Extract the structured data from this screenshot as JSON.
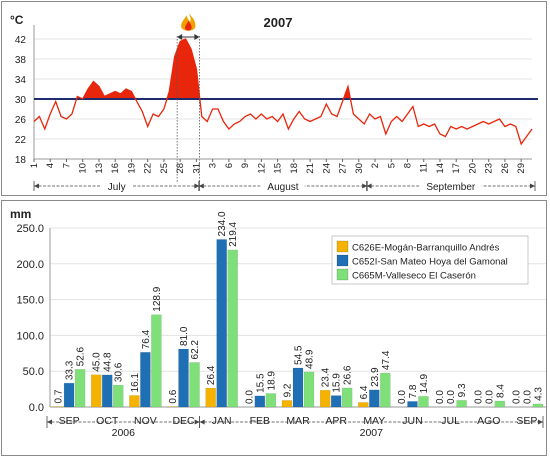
{
  "colors": {
    "temp_line": "#e8260c",
    "temp_fill": "#e8260c",
    "threshold": "#1f2d6e",
    "s1": "#f5b300",
    "s2": "#1f6fb5",
    "s3": "#7fe07a",
    "panel_border": "#888888",
    "grid": "#e3e3e3"
  },
  "chart_data": [
    {
      "type": "line",
      "title": "2007",
      "ylabel": "°C",
      "ylim": [
        18,
        44
      ],
      "yticks": [
        18,
        22,
        26,
        30,
        34,
        38,
        42
      ],
      "threshold": 30,
      "fire_icon": "fire-icon",
      "day_index_range": [
        1,
        93
      ],
      "x_tick_labels": [
        {
          "i": 1,
          "label": "1"
        },
        {
          "i": 4,
          "label": "4"
        },
        {
          "i": 7,
          "label": "7"
        },
        {
          "i": 10,
          "label": "10"
        },
        {
          "i": 13,
          "label": "13"
        },
        {
          "i": 16,
          "label": "16"
        },
        {
          "i": 19,
          "label": "19"
        },
        {
          "i": 22,
          "label": "22"
        },
        {
          "i": 25,
          "label": "25"
        },
        {
          "i": 28,
          "label": "28"
        },
        {
          "i": 31,
          "label": "31"
        },
        {
          "i": 34,
          "label": "3"
        },
        {
          "i": 37,
          "label": "6"
        },
        {
          "i": 40,
          "label": "9"
        },
        {
          "i": 43,
          "label": "12"
        },
        {
          "i": 46,
          "label": "15"
        },
        {
          "i": 49,
          "label": "18"
        },
        {
          "i": 52,
          "label": "21"
        },
        {
          "i": 55,
          "label": "24"
        },
        {
          "i": 58,
          "label": "27"
        },
        {
          "i": 61,
          "label": "30"
        },
        {
          "i": 64,
          "label": "2"
        },
        {
          "i": 67,
          "label": "5"
        },
        {
          "i": 70,
          "label": "8"
        },
        {
          "i": 73,
          "label": "11"
        },
        {
          "i": 76,
          "label": "14"
        },
        {
          "i": 79,
          "label": "17"
        },
        {
          "i": 82,
          "label": "20"
        },
        {
          "i": 85,
          "label": "23"
        },
        {
          "i": 88,
          "label": "26"
        },
        {
          "i": 91,
          "label": "29"
        }
      ],
      "months": [
        {
          "label": "July",
          "from": 1,
          "to": 31
        },
        {
          "label": "August",
          "from": 32,
          "to": 62
        },
        {
          "label": "September",
          "from": 63,
          "to": 93
        }
      ],
      "heat_event": {
        "from": 28,
        "to": 31
      },
      "values": [
        25.5,
        26.5,
        24.0,
        27.0,
        29.5,
        26.5,
        26.0,
        27.0,
        30.5,
        30.0,
        32.0,
        33.5,
        32.5,
        30.5,
        31.0,
        31.5,
        31.0,
        32.0,
        31.5,
        29.5,
        27.5,
        24.5,
        27.0,
        26.5,
        28.0,
        31.5,
        38.5,
        41.5,
        42.0,
        40.0,
        36.0,
        26.5,
        25.5,
        28.0,
        28.0,
        25.5,
        24.0,
        25.0,
        25.5,
        26.5,
        27.0,
        26.0,
        27.0,
        26.0,
        26.5,
        25.5,
        27.0,
        24.0,
        26.0,
        27.5,
        26.0,
        25.5,
        26.0,
        26.5,
        29.0,
        27.0,
        26.5,
        29.5,
        32.5,
        27.0,
        26.0,
        25.0,
        27.0,
        26.0,
        26.5,
        23.0,
        25.5,
        26.5,
        25.5,
        27.0,
        28.5,
        24.5,
        25.0,
        24.5,
        25.0,
        23.0,
        22.5,
        24.5,
        24.0,
        24.5,
        24.0,
        24.5,
        25.0,
        25.5,
        25.0,
        25.5,
        26.0,
        24.5,
        25.0,
        24.5,
        21.0,
        22.5,
        24.0
      ]
    },
    {
      "type": "bar",
      "ylabel": "mm",
      "ylim": [
        0,
        250
      ],
      "yticks": [
        "0.0",
        "50.0",
        "100.0",
        "150.0",
        "200.0",
        "250.0"
      ],
      "categories": [
        "SEP",
        "OCT",
        "NOV",
        "DEC",
        "JAN",
        "FEB",
        "MAR",
        "APR",
        "MAY",
        "JUN",
        "JUL",
        "AGO",
        "SEP"
      ],
      "year_groups": [
        {
          "label": "2006",
          "from": 0,
          "to": 3
        },
        {
          "label": "2007",
          "from": 4,
          "to": 12
        }
      ],
      "series": [
        {
          "name": "C626E-Mogán-Barranquillo Andrés",
          "values": [
            0.7,
            45.0,
            16.1,
            0.6,
            26.4,
            0.0,
            9.2,
            23.4,
            6.4,
            0.0,
            0.0,
            0.0,
            0.0
          ],
          "labels": [
            "0.7",
            "45.0",
            "16.1",
            "0.6",
            "26.4",
            "0.0",
            "9.2",
            "23.4",
            "6.4",
            "0.0",
            "0.0",
            "0.0",
            "0.0"
          ]
        },
        {
          "name": "C652I-San Mateo Hoya del Gamonal",
          "values": [
            33.3,
            44.8,
            76.4,
            81.0,
            234.0,
            15.5,
            54.5,
            15.9,
            23.9,
            7.8,
            0.0,
            0.0,
            0.0
          ],
          "labels": [
            "33.3",
            "44.8",
            "76.4",
            "81.0",
            "234.0",
            "15.5",
            "54.5",
            "15.9",
            "23.9",
            "7.8",
            "0.0",
            "0.0",
            "0.0"
          ]
        },
        {
          "name": "C665M-Valleseco El Caserón",
          "values": [
            52.6,
            30.6,
            128.9,
            62.2,
            219.4,
            18.9,
            48.9,
            26.6,
            47.4,
            14.9,
            9.3,
            8.4,
            4.3
          ],
          "labels": [
            "52.6",
            "30.6",
            "128.9",
            "62.2",
            "219.4",
            "18.9",
            "48.9",
            "26.6",
            "47.4",
            "14.9",
            "9.3",
            "8.4",
            "4.3"
          ]
        }
      ],
      "legend_position": "top-right"
    }
  ]
}
